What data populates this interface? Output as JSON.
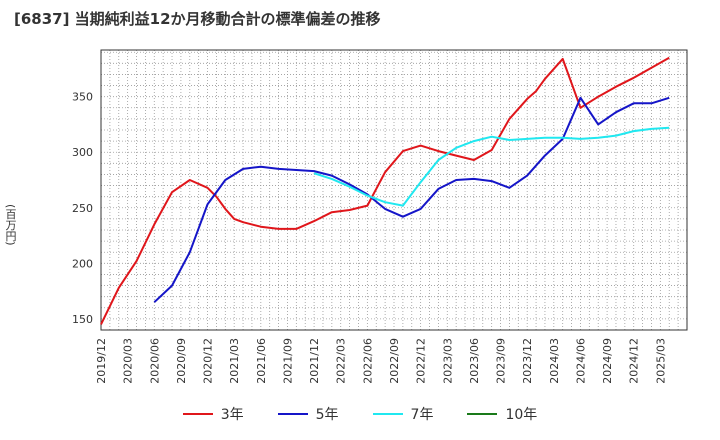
{
  "chart_data": {
    "type": "line",
    "title": "[6837]  当期純利益12か月移動合計の標準偏差の推移",
    "ylabel": "(百万円)",
    "xlabel": "",
    "ylim": [
      140,
      392
    ],
    "yticks": [
      150,
      200,
      250,
      300,
      350
    ],
    "xlim": [
      0,
      66
    ],
    "xticks": [
      "2019/12",
      "2020/03",
      "2020/06",
      "2020/09",
      "2020/12",
      "2021/03",
      "2021/06",
      "2021/09",
      "2021/12",
      "2022/03",
      "2022/06",
      "2022/09",
      "2022/12",
      "2023/03",
      "2023/06",
      "2023/09",
      "2023/12",
      "2024/03",
      "2024/06",
      "2024/09",
      "2024/12",
      "2025/03"
    ],
    "series": [
      {
        "name": "3年",
        "color": "#e0161b",
        "x": [
          0,
          2,
          4,
          6,
          8,
          10,
          12,
          13,
          14,
          15,
          16,
          18,
          20,
          22,
          24,
          26,
          28,
          30,
          32,
          34,
          36,
          38,
          40,
          42,
          44,
          46,
          47,
          48,
          49,
          50,
          52,
          54,
          56,
          58,
          60,
          62,
          64
        ],
        "y": [
          145,
          178,
          202,
          235,
          264,
          275,
          268,
          260,
          249,
          240,
          237,
          233,
          231,
          231,
          238,
          246,
          248,
          252,
          282,
          301,
          306,
          301,
          297,
          293,
          302,
          330,
          339,
          348,
          355,
          366,
          384,
          340,
          350,
          359,
          367,
          376,
          385
        ]
      },
      {
        "name": "5年",
        "color": "#1515c8",
        "x": [
          6,
          8,
          10,
          12,
          14,
          16,
          18,
          20,
          22,
          24,
          26,
          28,
          30,
          32,
          34,
          36,
          38,
          40,
          42,
          44,
          46,
          48,
          50,
          52,
          54,
          56,
          58,
          60,
          62,
          64
        ],
        "y": [
          165,
          180,
          210,
          253,
          275,
          285,
          287,
          285,
          284,
          283,
          279,
          271,
          262,
          249,
          242,
          249,
          267,
          275,
          276,
          274,
          268,
          279,
          297,
          312,
          349,
          325,
          336,
          344,
          344,
          349
        ]
      },
      {
        "name": "7年",
        "color": "#20e8f0",
        "x": [
          24,
          26,
          28,
          30,
          32,
          34,
          36,
          38,
          40,
          42,
          44,
          46,
          48,
          50,
          52,
          54,
          56,
          58,
          60,
          62,
          64
        ],
        "y": [
          281,
          276,
          269,
          261,
          255,
          252,
          273,
          293,
          304,
          310,
          314,
          311,
          312,
          313,
          313,
          312,
          313,
          315,
          319,
          321,
          322
        ]
      },
      {
        "name": "10年",
        "color": "#1a7a1a",
        "x": [],
        "y": []
      }
    ]
  }
}
